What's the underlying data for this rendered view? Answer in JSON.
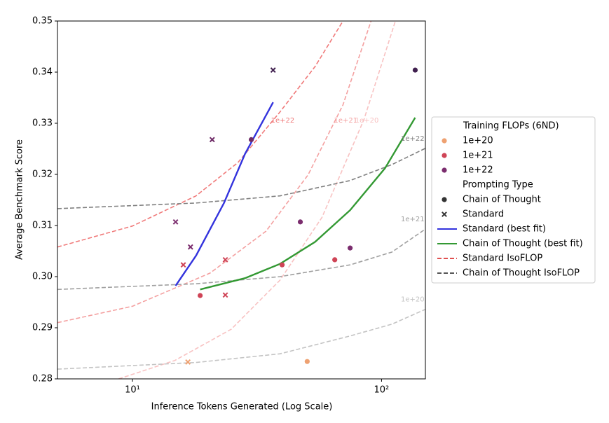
{
  "chart_data": {
    "type": "scatter",
    "x_label": "Inference Tokens Generated (Log Scale)",
    "y_label": "Average Benchmark Score",
    "x_scale": "log",
    "xlim": [
      5,
      150
    ],
    "ylim": [
      0.28,
      0.35
    ],
    "xticks": [
      {
        "value": 10,
        "label": "10¹"
      },
      {
        "value": 100,
        "label": "10²"
      }
    ],
    "yticks": [
      0.28,
      0.29,
      {
        "value": 0.3,
        "label": "0.30"
      },
      0.31,
      0.32,
      0.33,
      0.34,
      {
        "value": 0.35,
        "label": "0.35"
      }
    ],
    "legend_position": "right",
    "hue": {
      "title": "Training FLOPs (6ND)",
      "labels": [
        "1e+20",
        "1e+21",
        "1e+22"
      ],
      "colors": [
        "#eea171",
        "#cf4456",
        "#7b2d6e"
      ]
    },
    "style_title": "Prompting Type",
    "series": [
      {
        "name": "Chain of Thought",
        "marker": "circle",
        "legend_color": "#333333",
        "x": [
          50.3,
          18.7,
          39.9,
          64.9,
          30.0,
          47.2,
          74.8,
          136.5
        ],
        "values": [
          0.2834,
          0.2963,
          0.3023,
          0.3033,
          0.3268,
          0.3107,
          0.3056,
          0.3404
        ],
        "colors": [
          "#eea171",
          "#cf4456",
          "#cf4456",
          "#cf4456",
          "#6e2a66",
          "#7b2d6e",
          "#7b2d6e",
          "#40204f"
        ]
      },
      {
        "name": "Standard",
        "marker": "x",
        "legend_color": "#333333",
        "x": [
          16.7,
          16.0,
          23.6,
          23.6,
          14.9,
          17.1,
          20.9,
          36.7
        ],
        "values": [
          0.2833,
          0.3023,
          0.2964,
          0.3033,
          0.3107,
          0.3058,
          0.3268,
          0.3404
        ],
        "colors": [
          "#eea171",
          "#cf4456",
          "#cf4456",
          "#cf4456",
          "#7b2d6e",
          "#7b2d6e",
          "#6e2a66",
          "#40204f"
        ]
      }
    ],
    "fits": [
      {
        "name": "Standard (best fit)",
        "color": "#3333dd",
        "x": [
          14.9,
          18.0,
          23.3,
          28.3,
          36.7
        ],
        "values": [
          0.2982,
          0.3041,
          0.3144,
          0.324,
          0.3341
        ]
      },
      {
        "name": "Chain of Thought (best fit)",
        "color": "#339933",
        "x": [
          18.7,
          28.3,
          39.1,
          54.1,
          74.8,
          103.3,
          136.5
        ],
        "values": [
          0.2975,
          0.2997,
          0.3025,
          0.3068,
          0.313,
          0.3212,
          0.3311
        ]
      }
    ],
    "isoflops": [
      {
        "name": "Standard IsoFLOP",
        "color": "#e05050",
        "label_position": "top",
        "curves": [
          {
            "label": "1e+22",
            "color": "#f07a7a",
            "x": [
              5.0,
              10,
              18.0,
              26.5,
              39.1,
              54.1,
              70.0
            ],
            "values": [
              0.3058,
              0.3099,
              0.3158,
              0.3223,
              0.3322,
              0.3411,
              0.35
            ]
          },
          {
            "label": "1e+21",
            "color": "#f4a0a0",
            "x": [
              5.0,
              10,
              20.5,
              34.4,
              50.7,
              70.0,
              90.8
            ],
            "values": [
              0.291,
              0.2942,
              0.3007,
              0.3089,
              0.3199,
              0.3336,
              0.35
            ]
          },
          {
            "label": "1e+20",
            "color": "#f8c2c2",
            "x": [
              8.8,
              14.8,
              24.9,
              39.1,
              57.7,
              85.1,
              113.7
            ],
            "values": [
              0.28,
              0.2836,
              0.2897,
              0.2993,
              0.3116,
              0.3308,
              0.35
            ]
          }
        ]
      },
      {
        "name": "Chain of Thought IsoFLOP",
        "color": "#555555",
        "label_position": "right",
        "curves": [
          {
            "label": "1e+22",
            "color": "#808080",
            "x": [
              5.0,
              18.0,
              39.1,
              74.8,
              110,
              150
            ],
            "values": [
              0.3133,
              0.3144,
              0.3158,
              0.3188,
              0.3219,
              0.3251
            ]
          },
          {
            "label": "1e+21",
            "color": "#a0a0a0",
            "x": [
              5.0,
              18.0,
              39.1,
              74.8,
              110,
              150
            ],
            "values": [
              0.2975,
              0.2986,
              0.3,
              0.3023,
              0.3048,
              0.3093
            ]
          },
          {
            "label": "1e+20",
            "color": "#c4c4c4",
            "x": [
              5.0,
              18.0,
              39.1,
              74.8,
              110,
              150
            ],
            "values": [
              0.2819,
              0.2832,
              0.2849,
              0.2884,
              0.2907,
              0.2936
            ]
          }
        ]
      }
    ]
  }
}
